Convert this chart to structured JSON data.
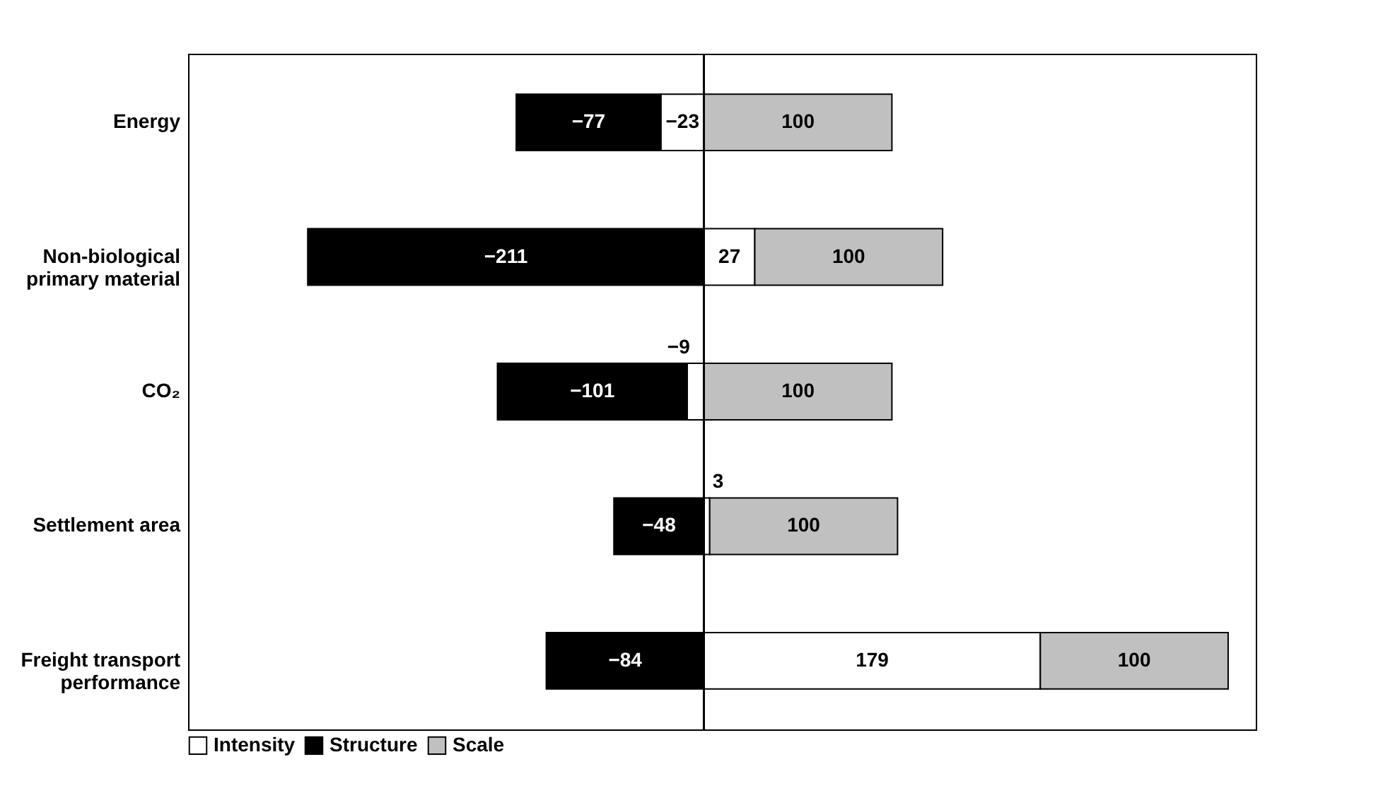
{
  "chart_data": {
    "type": "bar",
    "orientation": "horizontal",
    "stacked": true,
    "data_labels": true,
    "legend": "bottom",
    "grid": false,
    "categories": [
      "Energy",
      "Non-biological primary material",
      "CO₂",
      "Settlement area",
      "Freight transport performance"
    ],
    "series": [
      {
        "name": "Intensity",
        "color": "#ffffff",
        "values": [
          -23,
          27,
          -9,
          3,
          179
        ]
      },
      {
        "name": "Structure",
        "color": "#000000",
        "values": [
          -77,
          -211,
          -101,
          -48,
          -84
        ]
      },
      {
        "name": "Scale",
        "color": "#c0c0c0",
        "values": [
          100,
          100,
          100,
          100,
          100
        ]
      }
    ]
  }
}
